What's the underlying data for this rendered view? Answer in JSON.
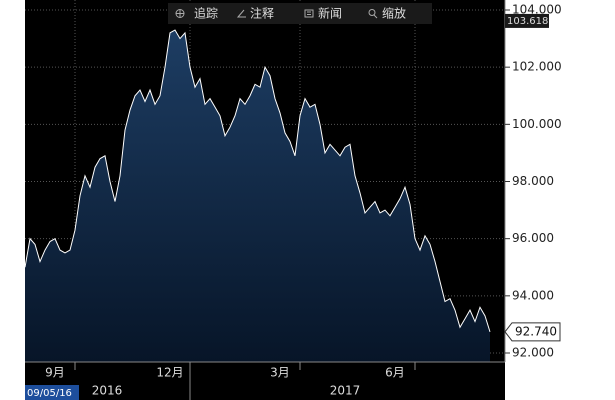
{
  "chart_data": {
    "type": "area",
    "toolbar": [
      "追踪",
      "注释",
      "新闻",
      "缩放"
    ],
    "values": [
      95.0,
      96.0,
      95.8,
      95.2,
      95.6,
      95.9,
      96.0,
      95.6,
      95.5,
      95.6,
      96.3,
      97.5,
      98.2,
      97.8,
      98.5,
      98.8,
      98.9,
      98.0,
      97.3,
      98.2,
      99.8,
      100.5,
      101.0,
      101.2,
      100.8,
      101.2,
      100.7,
      101.0,
      102.0,
      103.2,
      103.3,
      103.0,
      103.2,
      102.0,
      101.3,
      101.6,
      100.7,
      100.9,
      100.6,
      100.3,
      99.6,
      99.9,
      100.3,
      100.9,
      100.7,
      101.0,
      101.4,
      101.3,
      102.0,
      101.7,
      100.9,
      100.4,
      99.7,
      99.4,
      98.9,
      100.3,
      100.9,
      100.6,
      100.7,
      100.0,
      99.0,
      99.3,
      99.1,
      98.9,
      99.2,
      99.3,
      98.2,
      97.6,
      96.9,
      97.1,
      97.3,
      96.9,
      97.0,
      96.8,
      97.1,
      97.4,
      97.8,
      97.2,
      96.0,
      95.6,
      96.1,
      95.8,
      95.2,
      94.5,
      93.8,
      93.9,
      93.5,
      92.9,
      93.2,
      93.5,
      93.1,
      93.6,
      93.3,
      92.74
    ],
    "color": "#ffffff",
    "ylim": [
      92,
      104
    ],
    "yticks": [
      {
        "value": 92,
        "label": "92.000"
      },
      {
        "value": 94,
        "label": "94.000"
      },
      {
        "value": 96,
        "label": "96.000"
      },
      {
        "value": 98,
        "label": "98.000"
      },
      {
        "value": 100,
        "label": "100.000"
      },
      {
        "value": 102,
        "label": "102.000"
      },
      {
        "value": 104,
        "label": "104.000"
      }
    ],
    "xticks": [
      {
        "value": 10,
        "label": "9月"
      },
      {
        "value": 33,
        "label": "12月"
      },
      {
        "value": 55,
        "label": "3月"
      },
      {
        "value": 78,
        "label": "6月"
      }
    ],
    "years": [
      "2016",
      "2017"
    ],
    "high_marker": 103.618,
    "last_marker": {
      "value": 92.74,
      "label": "92.740"
    },
    "start_date": "09/05/16",
    "grid": true
  }
}
